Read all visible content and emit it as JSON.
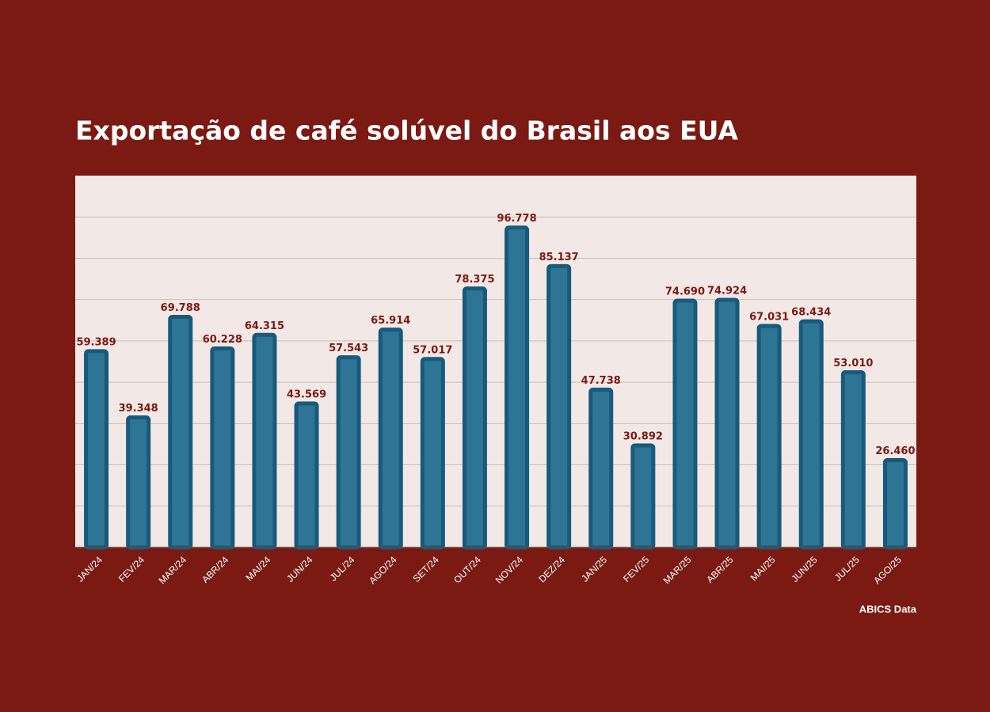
{
  "chart_data": {
    "type": "bar",
    "title": "Exportação de café solúvel do Brasil aos EUA",
    "source": "ABICS Data",
    "categories": [
      "JAN/24",
      "FEV/24",
      "MAR/24",
      "ABR/24",
      "MAI/24",
      "JUN/24",
      "JUL/24",
      "AGO/24",
      "SET/24",
      "OUT/24",
      "NOV/24",
      "DEZ/24",
      "JAN/25",
      "FEV/25",
      "MAR/25",
      "ABR/25",
      "MAI/25",
      "JUN/25",
      "JUL/25",
      "AGO/25"
    ],
    "values": [
      59389,
      39348,
      69788,
      60228,
      64315,
      43569,
      57543,
      65914,
      57017,
      78375,
      96778,
      85137,
      47738,
      30892,
      74690,
      74924,
      67031,
      68434,
      53010,
      26460
    ],
    "value_labels": [
      "59.389",
      "39.348",
      "69.788",
      "60.228",
      "64.315",
      "43.569",
      "57.543",
      "65.914",
      "57.017",
      "78.375",
      "96.778",
      "85.137",
      "47.738",
      "30.892",
      "74.690",
      "74.924",
      "67.031",
      "68.434",
      "53.010",
      "26.460"
    ],
    "color": "#2e7494",
    "ylim": [
      0,
      112500
    ],
    "yticks": [
      0,
      12500,
      25000,
      37500,
      50000,
      62500,
      75000,
      87500,
      100000
    ],
    "grid": true
  }
}
